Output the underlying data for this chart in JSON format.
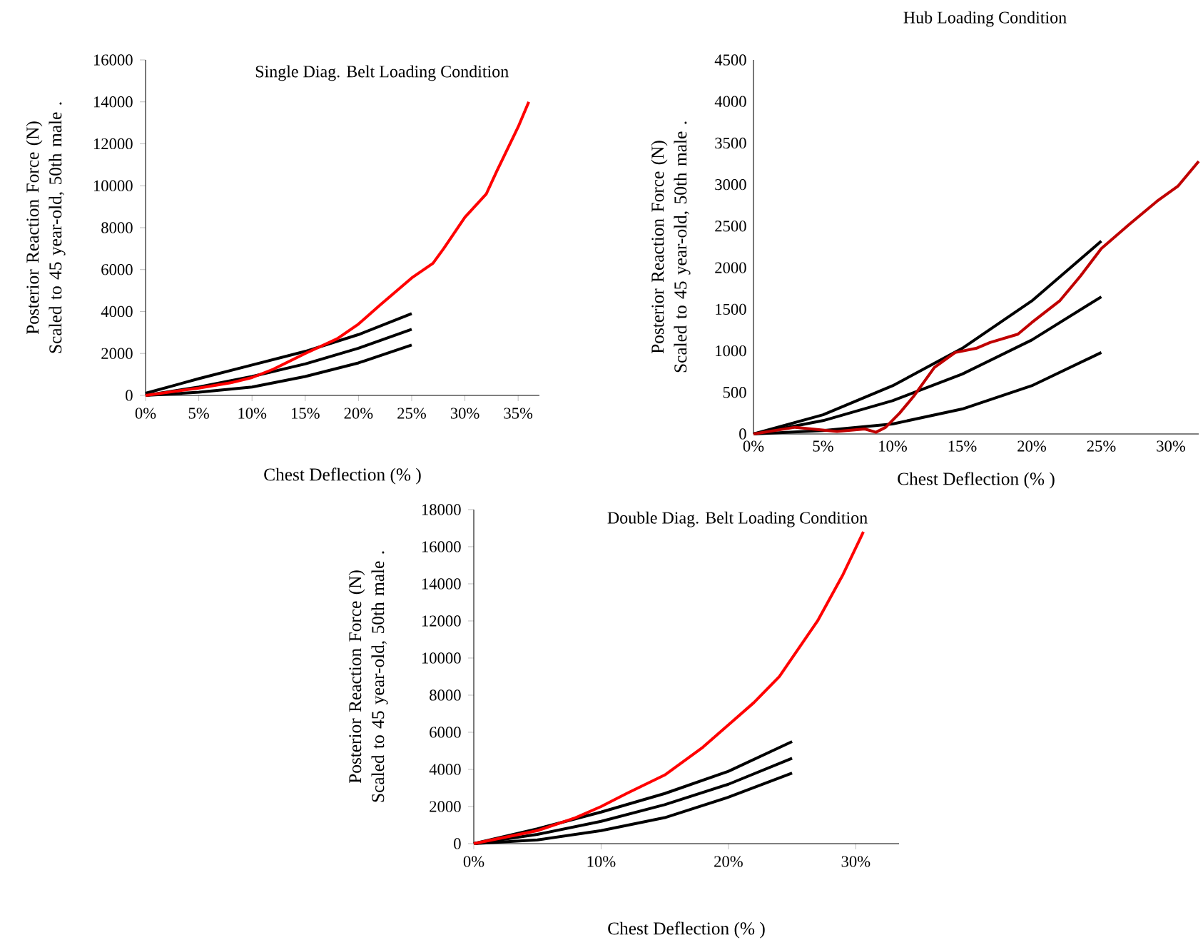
{
  "chart_data": [
    {
      "type": "line",
      "title": "Single Diag. Belt Loading Condition",
      "xlabel": "Chest Deflection (% )",
      "ylabel": "Posterior Reaction Force (N) Scaled to 45 year-old, 50th male .",
      "xlim": [
        0,
        37
      ],
      "ylim": [
        0,
        16000
      ],
      "xticks": [
        {
          "value": 0,
          "label": "0%"
        },
        {
          "value": 5,
          "label": "5%"
        },
        {
          "value": 10,
          "label": "10%"
        },
        {
          "value": 15,
          "label": "15%"
        },
        {
          "value": 20,
          "label": "20%"
        },
        {
          "value": 25,
          "label": "25%"
        },
        {
          "value": 30,
          "label": "30%"
        },
        {
          "value": 35,
          "label": "35%"
        }
      ],
      "yticks": [
        0,
        2000,
        4000,
        6000,
        8000,
        10000,
        12000,
        14000,
        16000
      ],
      "series": [
        {
          "color": "#000000",
          "x": [
            0,
            5,
            10,
            15,
            20,
            25
          ],
          "values": [
            100,
            800,
            1450,
            2100,
            2900,
            3900
          ]
        },
        {
          "color": "#000000",
          "x": [
            0,
            5,
            10,
            15,
            20,
            25
          ],
          "values": [
            0,
            400,
            900,
            1500,
            2250,
            3150
          ]
        },
        {
          "color": "#000000",
          "x": [
            0,
            5,
            10,
            15,
            20,
            25
          ],
          "values": [
            0,
            150,
            400,
            900,
            1550,
            2400
          ]
        },
        {
          "color": "#ff0000",
          "x": [
            0,
            5,
            8,
            10,
            12,
            15,
            18,
            20,
            22,
            25,
            27,
            28,
            30,
            32,
            33,
            35,
            36
          ],
          "values": [
            0,
            350,
            600,
            850,
            1250,
            2000,
            2700,
            3400,
            4300,
            5600,
            6300,
            7000,
            8500,
            9600,
            10700,
            12800,
            14000
          ]
        }
      ]
    },
    {
      "type": "line",
      "title": "Hub Loading Condition",
      "xlabel": "Chest Deflection (% )",
      "ylabel": "Posterior Reaction Force (N) Scaled to 45 year-old, 50th male .",
      "xlim": [
        0,
        32
      ],
      "ylim": [
        0,
        4500
      ],
      "xticks": [
        {
          "value": 0,
          "label": "0%"
        },
        {
          "value": 5,
          "label": "5%"
        },
        {
          "value": 10,
          "label": "10%"
        },
        {
          "value": 15,
          "label": "15%"
        },
        {
          "value": 20,
          "label": "20%"
        },
        {
          "value": 25,
          "label": "25%"
        },
        {
          "value": 30,
          "label": "30%"
        }
      ],
      "yticks": [
        0,
        500,
        1000,
        1500,
        2000,
        2500,
        3000,
        3500,
        4000,
        4500
      ],
      "series": [
        {
          "color": "#000000",
          "x": [
            0,
            5,
            10,
            15,
            20,
            25
          ],
          "values": [
            0,
            230,
            580,
            1030,
            1600,
            2320
          ]
        },
        {
          "color": "#000000",
          "x": [
            0,
            5,
            10,
            15,
            20,
            25
          ],
          "values": [
            0,
            160,
            400,
            720,
            1130,
            1650
          ]
        },
        {
          "color": "#000000",
          "x": [
            0,
            5,
            10,
            15,
            20,
            25
          ],
          "values": [
            0,
            40,
            120,
            300,
            580,
            980
          ]
        },
        {
          "color": "#c00000",
          "x": [
            0,
            3,
            6,
            8,
            8.8,
            9.5,
            10.5,
            11.5,
            13,
            14.5,
            16,
            17,
            19,
            20,
            22,
            23.5,
            25,
            27,
            29,
            30.5,
            32
          ],
          "values": [
            0,
            80,
            30,
            60,
            20,
            80,
            250,
            450,
            800,
            980,
            1030,
            1100,
            1200,
            1340,
            1600,
            1900,
            2230,
            2520,
            2800,
            2980,
            3280
          ]
        }
      ]
    },
    {
      "type": "line",
      "title": "Double Diag. Belt Loading Condition",
      "xlabel": "Chest Deflection (% )",
      "ylabel": "Posterior Reaction Force (N) Scaled to 45 year-old, 50th male .",
      "xlim": [
        0,
        33.4
      ],
      "ylim": [
        0,
        18000
      ],
      "xticks": [
        {
          "value": 0,
          "label": "0%"
        },
        {
          "value": 10,
          "label": "10%"
        },
        {
          "value": 20,
          "label": "20%"
        },
        {
          "value": 30,
          "label": "30%"
        }
      ],
      "yticks": [
        0,
        2000,
        4000,
        6000,
        8000,
        10000,
        12000,
        14000,
        16000,
        18000
      ],
      "series": [
        {
          "color": "#000000",
          "x": [
            0,
            5,
            10,
            15,
            20,
            25
          ],
          "values": [
            0,
            800,
            1700,
            2700,
            3900,
            5500
          ]
        },
        {
          "color": "#000000",
          "x": [
            0,
            5,
            10,
            15,
            20,
            25
          ],
          "values": [
            0,
            500,
            1200,
            2100,
            3200,
            4600
          ]
        },
        {
          "color": "#000000",
          "x": [
            0,
            5,
            10,
            15,
            20,
            25
          ],
          "values": [
            0,
            200,
            700,
            1400,
            2500,
            3800
          ]
        },
        {
          "color": "#ff0000",
          "x": [
            0,
            5,
            8,
            10,
            12,
            15,
            18,
            20,
            22,
            24,
            25,
            27,
            29,
            30.6
          ],
          "values": [
            0,
            700,
            1400,
            2000,
            2700,
            3700,
            5200,
            6400,
            7600,
            9000,
            10000,
            12000,
            14500,
            16800
          ]
        }
      ]
    }
  ]
}
